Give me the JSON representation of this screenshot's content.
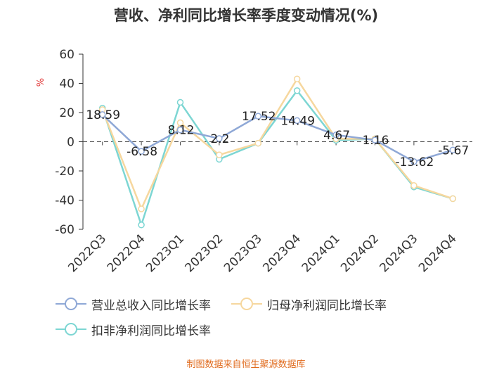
{
  "chart_data": {
    "type": "line",
    "title": "营收、净利同比增长率季度变动情况(%)",
    "ylabel": "%",
    "xlabel": "",
    "ylim": [
      -60,
      60
    ],
    "yticks": [
      60,
      40,
      20,
      0,
      -20,
      -40,
      -60
    ],
    "categories": [
      "2022Q3",
      "2022Q4",
      "2023Q1",
      "2023Q2",
      "2023Q3",
      "2023Q4",
      "2024Q1",
      "2024Q2",
      "2024Q3",
      "2024Q4"
    ],
    "series": [
      {
        "name": "营业总收入同比增长率",
        "color": "#8fa8d6",
        "values": [
          18.59,
          -6.58,
          8.12,
          2.2,
          17.52,
          14.49,
          4.67,
          1.16,
          -13.62,
          -5.67
        ],
        "labels": [
          "18.59",
          "-6.58",
          "8.12",
          "2.2",
          "17.52",
          "14.49",
          "4.67",
          "1.16",
          "-13.62",
          "-5.67"
        ]
      },
      {
        "name": "归母净利润同比增长率",
        "color": "#f6d79e",
        "values": [
          22,
          -46,
          13,
          -9,
          -1,
          43,
          2,
          2,
          -30,
          -39
        ]
      },
      {
        "name": "扣非净利润同比增长率",
        "color": "#7dd6d3",
        "values": [
          23,
          -57,
          27,
          -12,
          -1,
          35,
          1,
          2,
          -31,
          -39
        ]
      }
    ],
    "legend": "bottom"
  },
  "footer": {
    "source": "制图数据来自恒生聚源数据库",
    "color": "#e06a1c"
  },
  "axis_unit_color": "#e03030"
}
